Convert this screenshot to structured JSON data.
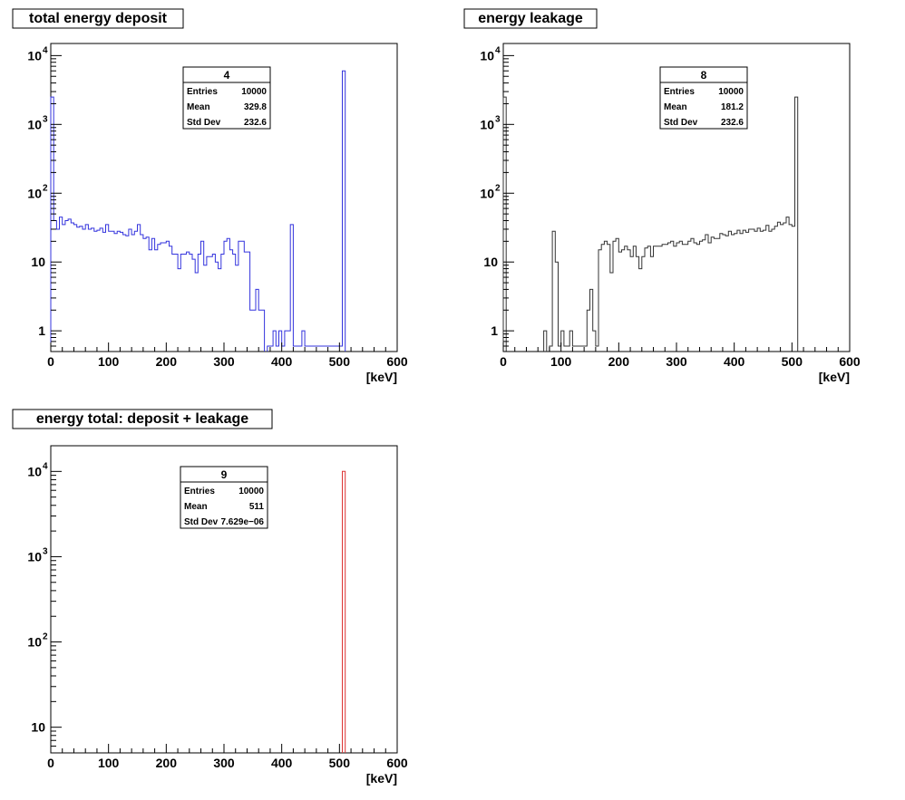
{
  "chart_data": [
    {
      "type": "histogram",
      "title": "total energy deposit",
      "xlabel": "[keV]",
      "ylabel": "",
      "xlim": [
        0,
        600
      ],
      "ylim": [
        0.5,
        15000
      ],
      "yscale": "log",
      "x_ticks": [
        "0",
        "100",
        "200",
        "300",
        "400",
        "500",
        "600"
      ],
      "y_ticks": [
        {
          "value": 1,
          "base": "1",
          "exp": ""
        },
        {
          "value": 10,
          "base": "10",
          "exp": ""
        },
        {
          "value": 100,
          "base": "10",
          "exp": "2"
        },
        {
          "value": 1000,
          "base": "10",
          "exp": "3"
        },
        {
          "value": 10000,
          "base": "10",
          "exp": "4"
        }
      ],
      "color": "#3333dd",
      "bin_width": 5,
      "bins": [
        [
          0,
          2500
        ],
        [
          5,
          40
        ],
        [
          10,
          30
        ],
        [
          15,
          45
        ],
        [
          20,
          35
        ],
        [
          25,
          40
        ],
        [
          30,
          42
        ],
        [
          35,
          37
        ],
        [
          40,
          35
        ],
        [
          45,
          32
        ],
        [
          50,
          33
        ],
        [
          55,
          30
        ],
        [
          60,
          35
        ],
        [
          65,
          30
        ],
        [
          70,
          31
        ],
        [
          75,
          28
        ],
        [
          80,
          29
        ],
        [
          85,
          31
        ],
        [
          90,
          27
        ],
        [
          95,
          35
        ],
        [
          100,
          28
        ],
        [
          105,
          28
        ],
        [
          110,
          26
        ],
        [
          115,
          28
        ],
        [
          120,
          27
        ],
        [
          125,
          25
        ],
        [
          130,
          24
        ],
        [
          135,
          30
        ],
        [
          140,
          25
        ],
        [
          145,
          28
        ],
        [
          150,
          35
        ],
        [
          155,
          25
        ],
        [
          160,
          22
        ],
        [
          165,
          23
        ],
        [
          170,
          15
        ],
        [
          175,
          22
        ],
        [
          180,
          15
        ],
        [
          185,
          18
        ],
        [
          190,
          19
        ],
        [
          195,
          19
        ],
        [
          200,
          20
        ],
        [
          205,
          17
        ],
        [
          210,
          13
        ],
        [
          215,
          13
        ],
        [
          220,
          8
        ],
        [
          225,
          13
        ],
        [
          230,
          13
        ],
        [
          235,
          14
        ],
        [
          240,
          13
        ],
        [
          245,
          11
        ],
        [
          250,
          7
        ],
        [
          255,
          13
        ],
        [
          260,
          20
        ],
        [
          265,
          9
        ],
        [
          270,
          12
        ],
        [
          275,
          12
        ],
        [
          280,
          13
        ],
        [
          285,
          10
        ],
        [
          290,
          8
        ],
        [
          295,
          13
        ],
        [
          300,
          20
        ],
        [
          305,
          22
        ],
        [
          310,
          15
        ],
        [
          315,
          13
        ],
        [
          320,
          9
        ],
        [
          325,
          20
        ],
        [
          330,
          20
        ],
        [
          335,
          14
        ],
        [
          340,
          14
        ],
        [
          345,
          2
        ],
        [
          350,
          2
        ],
        [
          355,
          4
        ],
        [
          360,
          2
        ],
        [
          365,
          2
        ],
        [
          375,
          0.6
        ],
        [
          380,
          0.6
        ],
        [
          385,
          1
        ],
        [
          390,
          0.6
        ],
        [
          395,
          1
        ],
        [
          400,
          0.6
        ],
        [
          405,
          1
        ],
        [
          410,
          1
        ],
        [
          415,
          35
        ],
        [
          420,
          0.6
        ],
        [
          425,
          0.6
        ],
        [
          430,
          0.6
        ],
        [
          435,
          1
        ],
        [
          440,
          0.6
        ],
        [
          445,
          0.6
        ],
        [
          450,
          0.6
        ],
        [
          455,
          0.6
        ],
        [
          460,
          0.6
        ],
        [
          465,
          0.6
        ],
        [
          470,
          0.6
        ],
        [
          475,
          0.6
        ],
        [
          480,
          0.6
        ],
        [
          485,
          0.6
        ],
        [
          490,
          0.6
        ],
        [
          495,
          0.6
        ],
        [
          500,
          0.6
        ],
        [
          505,
          6000
        ]
      ],
      "stats": {
        "title": "4",
        "entries_label": "Entries",
        "entries": "10000",
        "mean_label": "Mean",
        "mean": "329.8",
        "std_label": "Std Dev",
        "std": "232.6"
      }
    },
    {
      "type": "histogram",
      "title": "energy leakage",
      "xlabel": "[keV]",
      "ylabel": "",
      "xlim": [
        0,
        600
      ],
      "ylim": [
        0.5,
        15000
      ],
      "yscale": "log",
      "x_ticks": [
        "0",
        "100",
        "200",
        "300",
        "400",
        "500",
        "600"
      ],
      "y_ticks": [
        {
          "value": 1,
          "base": "1",
          "exp": ""
        },
        {
          "value": 10,
          "base": "10",
          "exp": ""
        },
        {
          "value": 100,
          "base": "10",
          "exp": "2"
        },
        {
          "value": 1000,
          "base": "10",
          "exp": "3"
        },
        {
          "value": 10000,
          "base": "10",
          "exp": "4"
        }
      ],
      "color": "#333333",
      "bin_width": 5,
      "bins": [
        [
          0,
          2500
        ],
        [
          70,
          1
        ],
        [
          80,
          0.6
        ],
        [
          85,
          28
        ],
        [
          90,
          10
        ],
        [
          95,
          0.6
        ],
        [
          100,
          1
        ],
        [
          105,
          0.6
        ],
        [
          110,
          0.6
        ],
        [
          115,
          1
        ],
        [
          120,
          0.6
        ],
        [
          125,
          0.6
        ],
        [
          130,
          0.6
        ],
        [
          135,
          0.6
        ],
        [
          140,
          0.6
        ],
        [
          145,
          2
        ],
        [
          150,
          4
        ],
        [
          155,
          1
        ],
        [
          160,
          0.6
        ],
        [
          165,
          15
        ],
        [
          170,
          18
        ],
        [
          175,
          20
        ],
        [
          180,
          18
        ],
        [
          185,
          7
        ],
        [
          190,
          20
        ],
        [
          195,
          22
        ],
        [
          200,
          14
        ],
        [
          205,
          15
        ],
        [
          210,
          17
        ],
        [
          215,
          15
        ],
        [
          220,
          12
        ],
        [
          225,
          17
        ],
        [
          230,
          12
        ],
        [
          235,
          8
        ],
        [
          240,
          12
        ],
        [
          245,
          16
        ],
        [
          250,
          17
        ],
        [
          255,
          12
        ],
        [
          260,
          17
        ],
        [
          265,
          17
        ],
        [
          270,
          17
        ],
        [
          275,
          18
        ],
        [
          280,
          18
        ],
        [
          285,
          19
        ],
        [
          290,
          20
        ],
        [
          295,
          17
        ],
        [
          300,
          19
        ],
        [
          305,
          20
        ],
        [
          310,
          18
        ],
        [
          315,
          18
        ],
        [
          320,
          20
        ],
        [
          325,
          22
        ],
        [
          330,
          19
        ],
        [
          335,
          18
        ],
        [
          340,
          20
        ],
        [
          345,
          21
        ],
        [
          350,
          25
        ],
        [
          355,
          19
        ],
        [
          360,
          23
        ],
        [
          365,
          22
        ],
        [
          370,
          22
        ],
        [
          375,
          26
        ],
        [
          380,
          25
        ],
        [
          385,
          24
        ],
        [
          390,
          28
        ],
        [
          395,
          25
        ],
        [
          400,
          26
        ],
        [
          405,
          29
        ],
        [
          410,
          26
        ],
        [
          415,
          29
        ],
        [
          420,
          27
        ],
        [
          425,
          30
        ],
        [
          430,
          30
        ],
        [
          435,
          28
        ],
        [
          440,
          31
        ],
        [
          445,
          28
        ],
        [
          450,
          29
        ],
        [
          455,
          34
        ],
        [
          460,
          28
        ],
        [
          465,
          30
        ],
        [
          470,
          33
        ],
        [
          475,
          38
        ],
        [
          480,
          35
        ],
        [
          485,
          37
        ],
        [
          490,
          45
        ],
        [
          495,
          35
        ],
        [
          500,
          33
        ],
        [
          505,
          2500
        ]
      ],
      "stats": {
        "title": "8",
        "entries_label": "Entries",
        "entries": "10000",
        "mean_label": "Mean",
        "mean": "181.2",
        "std_label": "Std Dev",
        "std": "232.6"
      }
    },
    {
      "type": "histogram",
      "title": "energy total: deposit + leakage",
      "xlabel": "[keV]",
      "ylabel": "",
      "xlim": [
        0,
        600
      ],
      "ylim": [
        5,
        20000
      ],
      "yscale": "log",
      "x_ticks": [
        "0",
        "100",
        "200",
        "300",
        "400",
        "500",
        "600"
      ],
      "y_ticks": [
        {
          "value": 10,
          "base": "10",
          "exp": ""
        },
        {
          "value": 100,
          "base": "10",
          "exp": "2"
        },
        {
          "value": 1000,
          "base": "10",
          "exp": "3"
        },
        {
          "value": 10000,
          "base": "10",
          "exp": "4"
        }
      ],
      "color": "#dd3333",
      "bin_width": 5,
      "bins": [
        [
          505,
          10000
        ]
      ],
      "stats": {
        "title": "9",
        "entries_label": "Entries",
        "entries": "10000",
        "mean_label": "Mean",
        "mean": "511",
        "std_label": "Std Dev",
        "std": "7.629e−06"
      }
    }
  ]
}
